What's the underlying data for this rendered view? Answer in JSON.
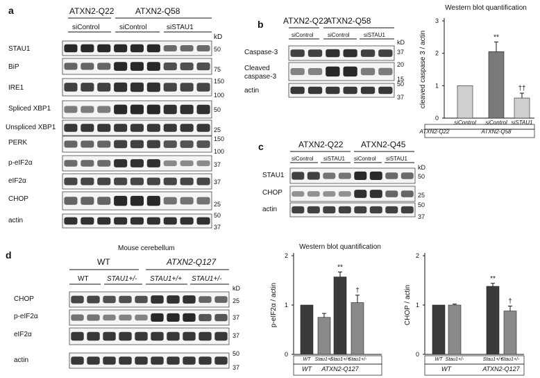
{
  "panel_a": {
    "letter": "a",
    "groups": [
      {
        "label": "ATXN2-Q22"
      },
      {
        "label": "ATXN2-Q58"
      }
    ],
    "subgroups": [
      {
        "label": "siControl"
      },
      {
        "label": "siControl"
      },
      {
        "label": "siSTAU1"
      }
    ],
    "kd": "kD",
    "blots": [
      {
        "label": "STAU1",
        "markers": [
          "50"
        ]
      },
      {
        "label": "BiP",
        "markers": [
          "75"
        ]
      },
      {
        "label": "IRE1",
        "markers": [
          "150",
          "100"
        ]
      },
      {
        "label": "Spliced XBP1",
        "markers": [
          "50"
        ]
      },
      {
        "label": "Unspliced XBP1",
        "markers": [
          "25"
        ]
      },
      {
        "label": "PERK",
        "markers": [
          "150",
          "100"
        ]
      },
      {
        "label": "p-eIF2α",
        "markers": [
          "37"
        ]
      },
      {
        "label": "eIF2α",
        "markers": [
          "37"
        ]
      },
      {
        "label": "CHOP",
        "markers": [
          "25"
        ]
      },
      {
        "label": "actin",
        "markers": [
          "50",
          "37"
        ]
      }
    ]
  },
  "panel_b": {
    "letter": "b",
    "groups": [
      {
        "label": "ATXN2-Q22"
      },
      {
        "label": "ATXN2-Q58"
      }
    ],
    "subgroups": [
      {
        "label": "siControl"
      },
      {
        "label": "siControl"
      },
      {
        "label": "siSTAU1"
      }
    ],
    "kd": "kD",
    "blots": [
      {
        "label": "Caspase-3",
        "markers": [
          "37"
        ]
      },
      {
        "label": "Cleaved caspase-3",
        "markers": [
          "20",
          "15"
        ]
      },
      {
        "label": "actin",
        "markers": [
          "50",
          "37"
        ]
      }
    ]
  },
  "panel_c": {
    "letter": "c",
    "groups": [
      {
        "label": "ATXN2-Q22"
      },
      {
        "label": "ATXN2-Q45"
      }
    ],
    "subgroups": [
      {
        "label": "siControl"
      },
      {
        "label": "siSTAU1"
      },
      {
        "label": "siControl"
      },
      {
        "label": "siSTAU1"
      }
    ],
    "kd": "kD",
    "blots": [
      {
        "label": "STAU1",
        "markers": [
          "50"
        ]
      },
      {
        "label": "CHOP",
        "markers": [
          "25"
        ]
      },
      {
        "label": "actin",
        "markers": [
          "50",
          "37"
        ]
      }
    ]
  },
  "panel_d": {
    "letter": "d",
    "title": "Mouse cerebellum",
    "groups": [
      {
        "label": "WT"
      },
      {
        "label": "ATXN2-Q127"
      }
    ],
    "subgroups": [
      {
        "label": "WT"
      },
      {
        "label": "STAU1+/-"
      },
      {
        "label": "STAU1+/+"
      },
      {
        "label": "STAU1+/-"
      }
    ],
    "kd": "kD",
    "blots": [
      {
        "label": "CHOP",
        "markers": [
          "25"
        ]
      },
      {
        "label": "p-eIF2α",
        "markers": [
          "37"
        ]
      },
      {
        "label": "eIF2α",
        "markers": [
          "37"
        ]
      },
      {
        "label": "actin",
        "markers": [
          "50",
          "37"
        ]
      }
    ]
  },
  "chart_data": [
    {
      "type": "bar",
      "title": "Western blot quantification",
      "ylabel": "cleaved caspase 3 / actin",
      "ylim": [
        0,
        3
      ],
      "yticks": [
        "0",
        "1",
        "2",
        "3"
      ],
      "categories": [
        "siControl",
        "siControl",
        "siSTAU1"
      ],
      "groups": [
        "ATXN2-Q22",
        "ATXN2-Q58"
      ],
      "values": [
        1.0,
        2.05,
        0.62
      ],
      "errors": [
        0.0,
        0.3,
        0.15
      ],
      "annotations": [
        "",
        "**",
        "††"
      ],
      "colors": [
        "#cfcfcf",
        "#7a7a7a",
        "#cfcfcf"
      ]
    },
    {
      "type": "bar",
      "title": "Western blot quantification",
      "ylabel": "p-eIF2α / actin",
      "ylim": [
        0,
        2
      ],
      "yticks": [
        "0",
        "1",
        "2"
      ],
      "categories": [
        "WT",
        "Stau1+/-",
        "Stau1+/+",
        "Stau1+/-"
      ],
      "groups": [
        "WT",
        "ATXN2-Q127"
      ],
      "values": [
        1.0,
        0.75,
        1.57,
        1.05
      ],
      "errors": [
        0.0,
        0.08,
        0.1,
        0.15
      ],
      "annotations": [
        "",
        "",
        "**",
        "†"
      ],
      "colors": [
        "#3a3a3a",
        "#8a8a8a",
        "#3a3a3a",
        "#8a8a8a"
      ]
    },
    {
      "type": "bar",
      "ylabel": "CHOP / actin",
      "ylim": [
        0,
        2
      ],
      "yticks": [
        "0",
        "1",
        "2"
      ],
      "categories": [
        "WT",
        "Stau1+/-",
        "Stau1+/+",
        "Stau1+/-"
      ],
      "groups": [
        "WT",
        "ATXN2-Q127"
      ],
      "values": [
        1.0,
        1.0,
        1.38,
        0.88
      ],
      "errors": [
        0.0,
        0.02,
        0.06,
        0.1
      ],
      "annotations": [
        "",
        "",
        "**",
        "†"
      ],
      "colors": [
        "#3a3a3a",
        "#8a8a8a",
        "#3a3a3a",
        "#8a8a8a"
      ]
    }
  ]
}
